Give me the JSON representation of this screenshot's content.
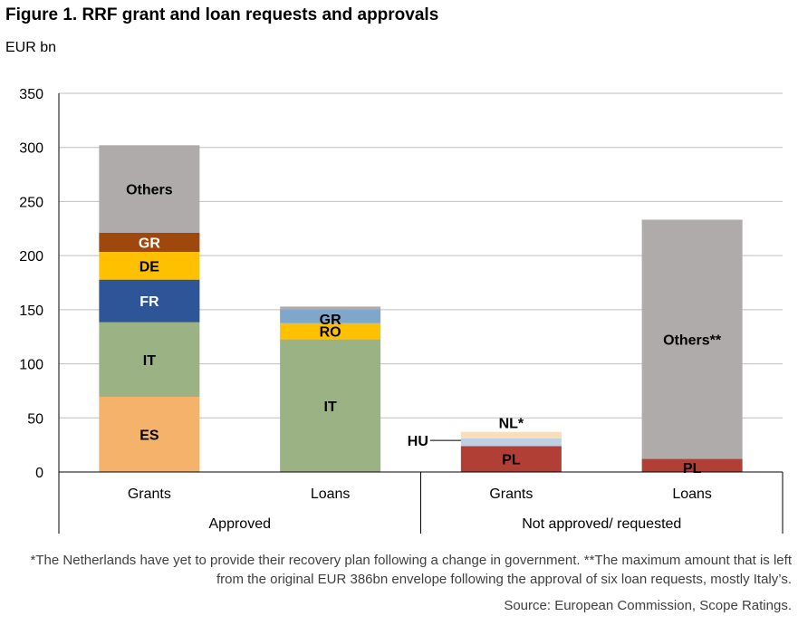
{
  "title": "Figure 1. RRF grant and loan requests and approvals",
  "unit_label": "EUR bn",
  "footnote": "*The Netherlands have yet to provide their recovery plan following a change in government. **The maximum amount that is left from the original EUR 386bn envelope following the approval of six loan requests, mostly Italy’s.",
  "source": "Source: European Commission, Scope Ratings.",
  "chart_data": {
    "type": "bar",
    "stacked": true,
    "ylim": [
      0,
      350
    ],
    "yticks": [
      0,
      50,
      100,
      150,
      200,
      250,
      300,
      350
    ],
    "grid": true,
    "categories": [
      "Grants",
      "Loans",
      "Grants",
      "Loans"
    ],
    "groups": [
      {
        "label": "Approved",
        "categories": [
          0,
          1
        ]
      },
      {
        "label": "Not approved/ requested",
        "categories": [
          2,
          3
        ]
      }
    ],
    "bars": [
      {
        "category": "Grants",
        "segments": [
          {
            "label": "ES",
            "value": 69.5,
            "color": "#F4B26A",
            "text_color": "#000000"
          },
          {
            "label": "IT",
            "value": 68.9,
            "color": "#9BB384",
            "text_color": "#000000"
          },
          {
            "label": "FR",
            "value": 39.4,
            "color": "#2E5597",
            "text_color": "#FFFFFF"
          },
          {
            "label": "DE",
            "value": 25.6,
            "color": "#FFC000",
            "text_color": "#000000"
          },
          {
            "label": "GR",
            "value": 17.8,
            "color": "#9E480E",
            "text_color": "#FFFFFF"
          },
          {
            "label": "Others",
            "value": 80.8,
            "color": "#AFABAB",
            "text_color": "#000000"
          }
        ]
      },
      {
        "category": "Loans",
        "segments": [
          {
            "label": "IT",
            "value": 122.6,
            "color": "#9BB384",
            "text_color": "#000000"
          },
          {
            "label": "RO",
            "value": 14.9,
            "color": "#FFC000",
            "text_color": "#000000"
          },
          {
            "label": "GR",
            "value": 12.7,
            "color": "#7FA7CC",
            "text_color": "#000000"
          },
          {
            "label": "",
            "value": 2.7,
            "color": "#AFABAB",
            "text_color": "#000000"
          }
        ]
      },
      {
        "category": "Grants",
        "segments": [
          {
            "label": "PL",
            "value": 23.9,
            "color": "#B13F36",
            "text_color": "#000000"
          },
          {
            "label": "HU",
            "value": 7.2,
            "color": "#BDD0E6",
            "text_color": "#000000"
          },
          {
            "label": "NL*",
            "value": 6.0,
            "color": "#FBDDB8",
            "text_color": "#000000"
          }
        ]
      },
      {
        "category": "Loans",
        "segments": [
          {
            "label": "PL",
            "value": 12.1,
            "color": "#B13F36",
            "text_color": "#000000"
          },
          {
            "label": "Others**",
            "value": 221.1,
            "color": "#AFABAB",
            "text_color": "#000000"
          }
        ]
      }
    ]
  }
}
